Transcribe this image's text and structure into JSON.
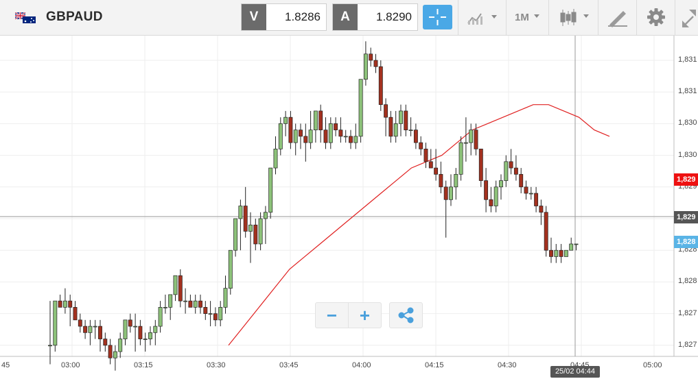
{
  "header": {
    "pair": "GBPAUD",
    "bid_label": "V",
    "bid_value": "1.8286",
    "ask_label": "A",
    "ask_value": "1.8290",
    "timeframe": "1M",
    "icons": [
      "uk-flag-icon",
      "australia-flag-icon",
      "crosshair-icon",
      "line-chart-icon",
      "candlestick-icon",
      "drawing-icon",
      "gear-icon",
      "expand-icon"
    ]
  },
  "zoom": {
    "minus": "−",
    "plus": "+"
  },
  "axes": {
    "y_labels": [
      "1,831",
      "1,831",
      "1,830",
      "1,830",
      "1,829",
      "1,829",
      "1,828",
      "1,828",
      "1,827",
      "1,827"
    ],
    "x_labels": [
      "45",
      "03:00",
      "03:15",
      "03:30",
      "03:45",
      "04:00",
      "04:15",
      "04:30",
      "04:45",
      "05:00"
    ],
    "last_price_label": "1,829",
    "ask_price_label": "1,829",
    "bid_price_label": "1,828",
    "cursor_time": "25/02 04:44"
  },
  "colors": {
    "bull": "#8dc27a",
    "bear": "#a3311f",
    "ma": "#e02020",
    "ask_tag": "#ee1111",
    "bid_tag": "#5ab4e6",
    "last_tag": "#555555",
    "accent": "#4aa8e6"
  },
  "chart_data": {
    "type": "candlestick",
    "interval": "1M",
    "y_ticks": [
      1.831,
      1.8305,
      1.83,
      1.8295,
      1.829,
      1.8285,
      1.828,
      1.8275,
      1.827,
      1.8265
    ],
    "x_ticks": [
      "03:00",
      "03:15",
      "03:30",
      "03:45",
      "04:00",
      "04:15",
      "04:30",
      "04:45",
      "05:00"
    ],
    "ma_series": [
      1.8265,
      1.8268,
      1.8271,
      1.8274,
      1.8277,
      1.8279,
      1.8281,
      1.8283,
      1.8285,
      1.8287,
      1.8289,
      1.8291,
      1.8293,
      1.8294,
      1.8295,
      1.8297,
      1.8299,
      1.83,
      1.8301,
      1.8302,
      1.8303,
      1.8303,
      1.8302,
      1.8301,
      1.8299,
      1.8298
    ],
    "candles": [
      [
        1.8265,
        1.8272,
        1.8262,
        1.8265
      ],
      [
        1.8265,
        1.8272,
        1.8264,
        1.8272
      ],
      [
        1.8272,
        1.8273,
        1.8271,
        1.8271
      ],
      [
        1.8271,
        1.8274,
        1.827,
        1.8272
      ],
      [
        1.8272,
        1.8273,
        1.8268,
        1.8271
      ],
      [
        1.8271,
        1.8272,
        1.8269,
        1.8269
      ],
      [
        1.8269,
        1.827,
        1.8267,
        1.8268
      ],
      [
        1.8268,
        1.8269,
        1.8266,
        1.8267
      ],
      [
        1.8267,
        1.8269,
        1.8265,
        1.8268
      ],
      [
        1.8268,
        1.8269,
        1.8266,
        1.8268
      ],
      [
        1.8268,
        1.8269,
        1.8264,
        1.8266
      ],
      [
        1.8266,
        1.8267,
        1.8264,
        1.8265
      ],
      [
        1.8265,
        1.8266,
        1.8262,
        1.8263
      ],
      [
        1.8263,
        1.8265,
        1.8261,
        1.8264
      ],
      [
        1.8264,
        1.8267,
        1.8263,
        1.8266
      ],
      [
        1.8266,
        1.8269,
        1.8265,
        1.8269
      ],
      [
        1.8269,
        1.827,
        1.8267,
        1.8268
      ],
      [
        1.8268,
        1.827,
        1.8264,
        1.8268
      ],
      [
        1.8268,
        1.8269,
        1.8265,
        1.8266
      ],
      [
        1.8266,
        1.8267,
        1.8264,
        1.8266
      ],
      [
        1.8266,
        1.8268,
        1.8265,
        1.8267
      ],
      [
        1.8267,
        1.8269,
        1.8265,
        1.8268
      ],
      [
        1.8268,
        1.8272,
        1.8267,
        1.8271
      ],
      [
        1.8271,
        1.8273,
        1.827,
        1.8271
      ],
      [
        1.8271,
        1.8273,
        1.8269,
        1.8273
      ],
      [
        1.8273,
        1.8276,
        1.8272,
        1.8276
      ],
      [
        1.8276,
        1.8277,
        1.8271,
        1.8272
      ],
      [
        1.8272,
        1.8274,
        1.827,
        1.8272
      ],
      [
        1.8272,
        1.8273,
        1.8271,
        1.8271
      ],
      [
        1.8271,
        1.8273,
        1.827,
        1.8272
      ],
      [
        1.8272,
        1.8273,
        1.827,
        1.8271
      ],
      [
        1.8271,
        1.8272,
        1.8269,
        1.827
      ],
      [
        1.827,
        1.8272,
        1.8268,
        1.827
      ],
      [
        1.827,
        1.8271,
        1.8268,
        1.8269
      ],
      [
        1.8269,
        1.8272,
        1.8268,
        1.8271
      ],
      [
        1.8271,
        1.8276,
        1.827,
        1.8274
      ],
      [
        1.8274,
        1.828,
        1.8273,
        1.828
      ],
      [
        1.828,
        1.8285,
        1.8279,
        1.8285
      ],
      [
        1.8285,
        1.8288,
        1.828,
        1.8287
      ],
      [
        1.8287,
        1.829,
        1.8282,
        1.8283
      ],
      [
        1.8283,
        1.8286,
        1.8278,
        1.8284
      ],
      [
        1.8284,
        1.8285,
        1.828,
        1.8281
      ],
      [
        1.8281,
        1.8286,
        1.828,
        1.8285
      ],
      [
        1.8285,
        1.8287,
        1.8281,
        1.8286
      ],
      [
        1.8286,
        1.8293,
        1.8285,
        1.8293
      ],
      [
        1.8293,
        1.8298,
        1.8292,
        1.8296
      ],
      [
        1.8296,
        1.8301,
        1.8295,
        1.83
      ],
      [
        1.83,
        1.8302,
        1.8298,
        1.8301
      ],
      [
        1.8301,
        1.8302,
        1.8296,
        1.8297
      ],
      [
        1.8297,
        1.83,
        1.8295,
        1.8299
      ],
      [
        1.8299,
        1.83,
        1.8296,
        1.8298
      ],
      [
        1.8298,
        1.83,
        1.8294,
        1.8297
      ],
      [
        1.8297,
        1.8302,
        1.8296,
        1.8299
      ],
      [
        1.8299,
        1.8302,
        1.8297,
        1.8302
      ],
      [
        1.8302,
        1.8303,
        1.8297,
        1.8299
      ],
      [
        1.8299,
        1.8301,
        1.8296,
        1.8297
      ],
      [
        1.8297,
        1.8301,
        1.8296,
        1.83
      ],
      [
        1.83,
        1.8301,
        1.8298,
        1.8299
      ],
      [
        1.8299,
        1.8301,
        1.8297,
        1.8298
      ],
      [
        1.8298,
        1.8299,
        1.8297,
        1.8298
      ],
      [
        1.8298,
        1.8299,
        1.8296,
        1.8297
      ],
      [
        1.8297,
        1.83,
        1.8296,
        1.8298
      ],
      [
        1.8298,
        1.8307,
        1.8297,
        1.8307
      ],
      [
        1.8307,
        1.8313,
        1.8306,
        1.8311
      ],
      [
        1.8311,
        1.8312,
        1.8309,
        1.831
      ],
      [
        1.831,
        1.8311,
        1.8308,
        1.8309
      ],
      [
        1.8309,
        1.831,
        1.8302,
        1.8303
      ],
      [
        1.8303,
        1.8304,
        1.8298,
        1.8301
      ],
      [
        1.8301,
        1.8302,
        1.8297,
        1.8298
      ],
      [
        1.8298,
        1.8302,
        1.8297,
        1.83
      ],
      [
        1.83,
        1.8303,
        1.8298,
        1.8302
      ],
      [
        1.8302,
        1.8303,
        1.8298,
        1.8299
      ],
      [
        1.8299,
        1.8301,
        1.8298,
        1.8299
      ],
      [
        1.8299,
        1.83,
        1.8296,
        1.8297
      ],
      [
        1.8297,
        1.8298,
        1.8295,
        1.8296
      ],
      [
        1.8296,
        1.8297,
        1.8293,
        1.8294
      ],
      [
        1.8294,
        1.8296,
        1.8293,
        1.8293
      ],
      [
        1.8293,
        1.8296,
        1.8291,
        1.8292
      ],
      [
        1.8292,
        1.8294,
        1.8289,
        1.829
      ],
      [
        1.829,
        1.8291,
        1.8282,
        1.8288
      ],
      [
        1.8288,
        1.8292,
        1.8287,
        1.829
      ],
      [
        1.829,
        1.8293,
        1.8288,
        1.8292
      ],
      [
        1.8292,
        1.8298,
        1.8291,
        1.8297
      ],
      [
        1.8297,
        1.8301,
        1.8294,
        1.8297
      ],
      [
        1.8297,
        1.83,
        1.8295,
        1.8299
      ],
      [
        1.8299,
        1.83,
        1.8295,
        1.8296
      ],
      [
        1.8296,
        1.8296,
        1.829,
        1.8291
      ],
      [
        1.8291,
        1.8293,
        1.8286,
        1.8288
      ],
      [
        1.8288,
        1.829,
        1.8286,
        1.8287
      ],
      [
        1.8287,
        1.8291,
        1.8286,
        1.829
      ],
      [
        1.829,
        1.8292,
        1.8288,
        1.8291
      ],
      [
        1.8291,
        1.8295,
        1.829,
        1.8294
      ],
      [
        1.8294,
        1.8296,
        1.8292,
        1.8293
      ],
      [
        1.8293,
        1.8295,
        1.8291,
        1.8292
      ],
      [
        1.8292,
        1.8293,
        1.8289,
        1.829
      ],
      [
        1.829,
        1.8291,
        1.8288,
        1.8289
      ],
      [
        1.8289,
        1.829,
        1.8288,
        1.8289
      ],
      [
        1.8289,
        1.829,
        1.8286,
        1.8287
      ],
      [
        1.8287,
        1.8288,
        1.8284,
        1.8286
      ],
      [
        1.8286,
        1.8287,
        1.8279,
        1.828
      ],
      [
        1.828,
        1.8282,
        1.8278,
        1.8279
      ],
      [
        1.8279,
        1.8281,
        1.8278,
        1.828
      ],
      [
        1.828,
        1.8281,
        1.8278,
        1.8279
      ],
      [
        1.8279,
        1.828,
        1.8279,
        1.828
      ],
      [
        1.828,
        1.8282,
        1.828,
        1.8281
      ],
      [
        1.8281,
        1.8281,
        1.828,
        1.8281
      ]
    ]
  }
}
